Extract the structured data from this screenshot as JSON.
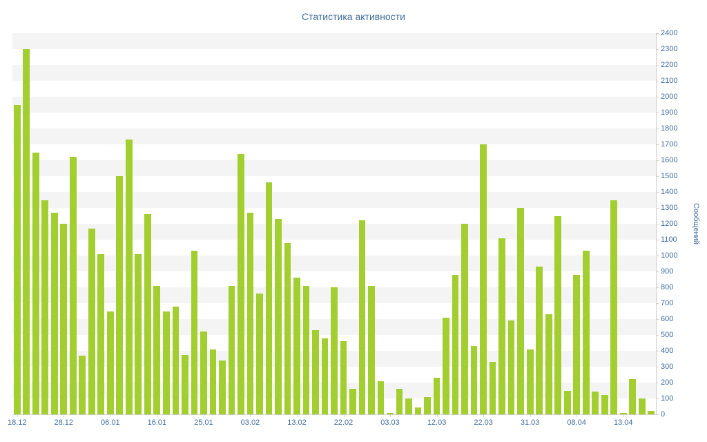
{
  "title": "Статистика активности",
  "colors": {
    "bar": "#a2ce30",
    "band": "#f4f4f4",
    "axis": "#cfcfcf",
    "text": "#3e6b99"
  },
  "chart_data": {
    "type": "bar",
    "title": "Статистика активности",
    "xlabel": "",
    "ylabel": "Сообщений",
    "ylim": [
      0,
      2400
    ],
    "y_tick_step": 100,
    "legend": "none",
    "grid": "alternating-horizontal-bands",
    "x_tick_labels": [
      "18.12",
      "28.12",
      "06.01",
      "16.01",
      "25.01",
      "03.02",
      "13.02",
      "22.02",
      "03.03",
      "12.03",
      "22.03",
      "31.03",
      "08.04",
      "13.04"
    ],
    "x_tick_every": 5,
    "values": [
      1950,
      2300,
      1650,
      1350,
      1270,
      1200,
      1620,
      370,
      1170,
      1010,
      650,
      1500,
      1730,
      1010,
      1260,
      810,
      650,
      680,
      375,
      1030,
      520,
      410,
      340,
      810,
      1640,
      1270,
      760,
      1460,
      1230,
      1080,
      860,
      810,
      530,
      480,
      800,
      460,
      160,
      1220,
      810,
      210,
      10,
      160,
      100,
      45,
      110,
      230,
      610,
      880,
      1200,
      430,
      1700,
      330,
      1110,
      590,
      1300,
      410,
      930,
      630,
      1250,
      150,
      880,
      1030,
      145,
      120,
      1350,
      10,
      220,
      100,
      20
    ]
  }
}
